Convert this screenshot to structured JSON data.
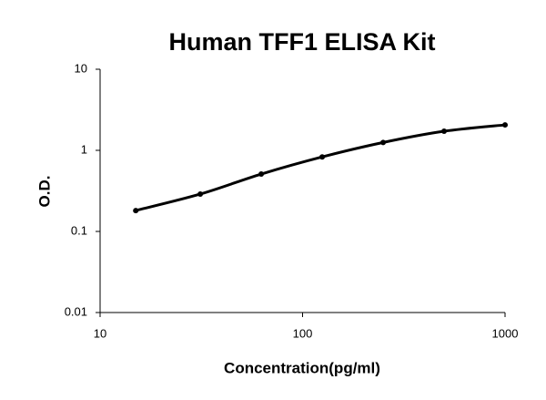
{
  "chart_data": {
    "type": "scatter",
    "title": "Human TFF1 ELISA Kit",
    "x_label": "Concentration(pg/ml)",
    "y_label": "O.D.",
    "x": [
      15,
      31.25,
      62.5,
      125,
      250,
      500,
      1000
    ],
    "values": [
      0.181,
      0.289,
      0.51,
      0.83,
      1.25,
      1.72,
      2.06
    ],
    "color": "#000000",
    "xlim": [
      10,
      1000
    ],
    "xticks": [
      10,
      100,
      1000
    ],
    "ylim": [
      0.01,
      10
    ],
    "yticks": [
      0.01,
      0.1,
      1,
      10
    ],
    "xscale": "log",
    "yscale": "log",
    "trendline": true
  }
}
